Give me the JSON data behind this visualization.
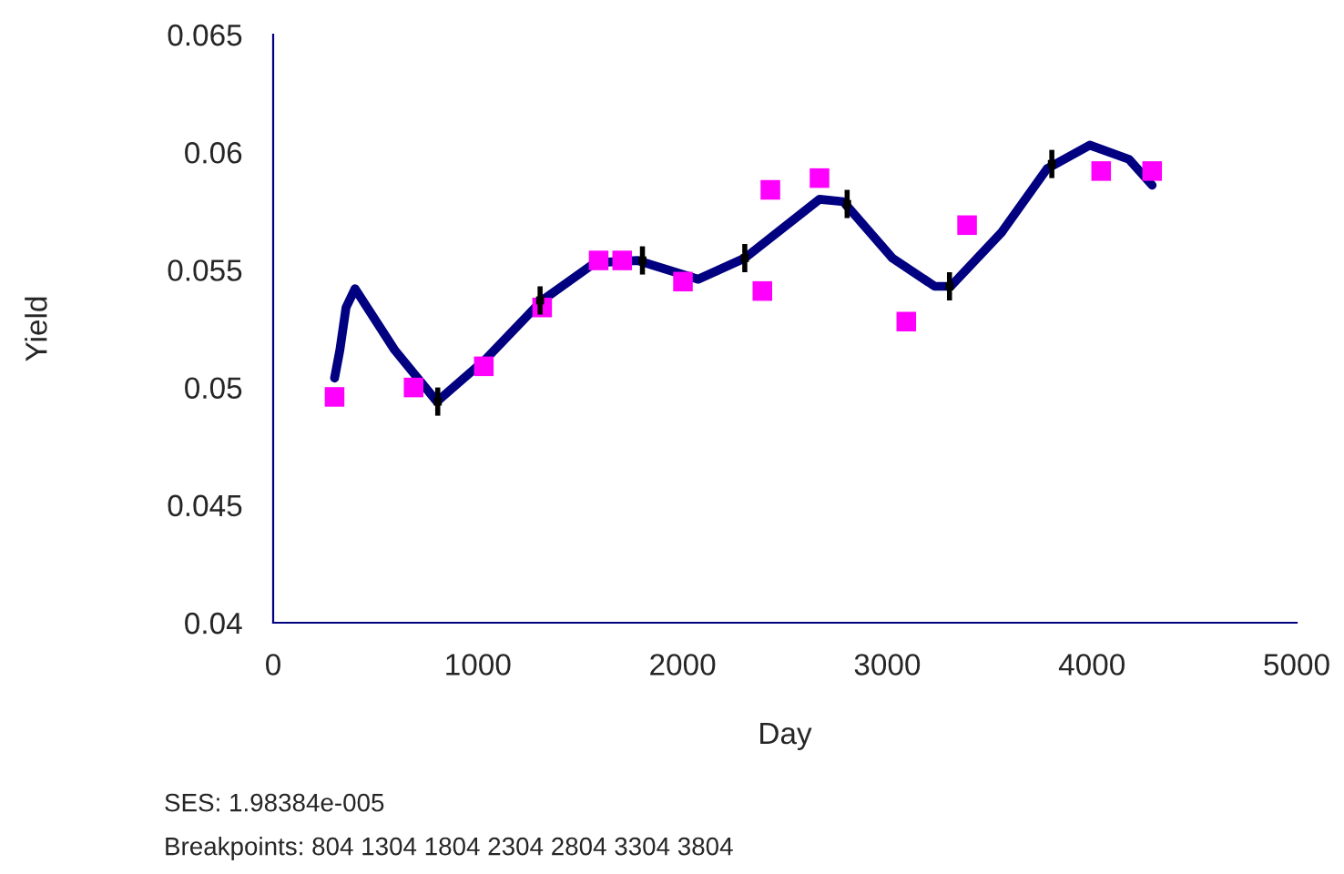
{
  "chart_data": {
    "type": "scatter",
    "xlabel": "Day",
    "ylabel": "Yield",
    "xlim": [
      0,
      5000
    ],
    "xticks": [
      0,
      1000,
      2000,
      3000,
      4000,
      5000
    ],
    "ylim": [
      0.04,
      0.065
    ],
    "yticks": [
      0.04,
      0.045,
      0.05,
      0.055,
      0.06,
      0.065
    ],
    "grid": false,
    "legend": false,
    "series": [
      {
        "type": "line",
        "color": "#000080",
        "line_style": "solid",
        "marker": "none",
        "x": [
          300,
          326,
          356,
          400,
          593,
          800,
          1038,
          1314,
          1572,
          1780,
          2076,
          2304,
          2669,
          2785,
          3025,
          3232,
          3310,
          3559,
          3781,
          3989,
          4181,
          4294
        ],
        "values": [
          0.0504,
          0.0516,
          0.0534,
          0.0542,
          0.0516,
          0.0494,
          0.0512,
          0.0537,
          0.0553,
          0.0554,
          0.0546,
          0.0555,
          0.058,
          0.0579,
          0.0555,
          0.0543,
          0.0543,
          0.0566,
          0.0593,
          0.0603,
          0.0597,
          0.0586
        ]
      },
      {
        "color": "#ff00ff",
        "marker": "square",
        "x": [
          300,
          686,
          1029,
          1314,
          1590,
          1705,
          2002,
          2390,
          2429,
          2669,
          3093,
          3390,
          4045,
          4294
        ],
        "values": [
          0.0496,
          0.05,
          0.0509,
          0.0534,
          0.0554,
          0.0554,
          0.0545,
          0.0541,
          0.0584,
          0.0589,
          0.0528,
          0.0569,
          0.0592,
          0.0592
        ]
      },
      {
        "type": "scatter",
        "color": "#000000",
        "marker": "square",
        "x": [
          804,
          1304,
          1804,
          2304,
          2804,
          3304,
          3804
        ],
        "values": [
          0.0494,
          0.0537,
          0.0554,
          0.0555,
          0.0578,
          0.0543,
          0.0595
        ],
        "errors": [
          0.0006,
          0.0006,
          0.0006,
          0.0006,
          0.0006,
          0.0006,
          0.0006
        ]
      }
    ],
    "annotations": [
      "SES: 1.98384e-005",
      "Breakpoints: 804 1304 1804 2304 2804 3304 3804"
    ]
  }
}
